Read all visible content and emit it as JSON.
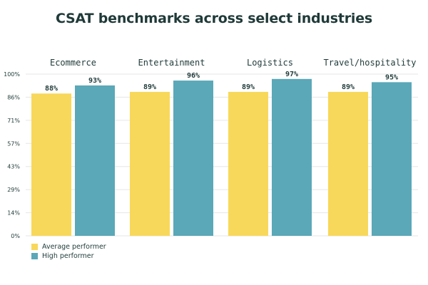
{
  "title": "CSAT benchmarks across select industries",
  "colors": {
    "average": "#f8d85a",
    "high": "#5aa8b8",
    "grid": "#e6e6e6",
    "text": "#1f3a38"
  },
  "legend": [
    {
      "label": "Average performer",
      "color": "#f8d85a"
    },
    {
      "label": "High performer",
      "color": "#5aa8b8"
    }
  ],
  "chart_data": {
    "type": "bar",
    "title": "CSAT benchmarks across select industries",
    "categories": [
      "Ecommerce",
      "Entertainment",
      "Logistics",
      "Travel/hospitality"
    ],
    "series": [
      {
        "name": "Average performer",
        "values": [
          88,
          89,
          89,
          89
        ],
        "labels": [
          "88%",
          "89%",
          "89%",
          "89%"
        ]
      },
      {
        "name": "High performer",
        "values": [
          93,
          96,
          97,
          95
        ],
        "labels": [
          "93%",
          "96%",
          "97%",
          "95%"
        ]
      }
    ],
    "yticks": [
      "0%",
      "14%",
      "29%",
      "43%",
      "57%",
      "71%",
      "86%",
      "100%"
    ],
    "ylim": [
      0,
      100
    ],
    "grid": true,
    "legend_position": "bottom-left"
  }
}
